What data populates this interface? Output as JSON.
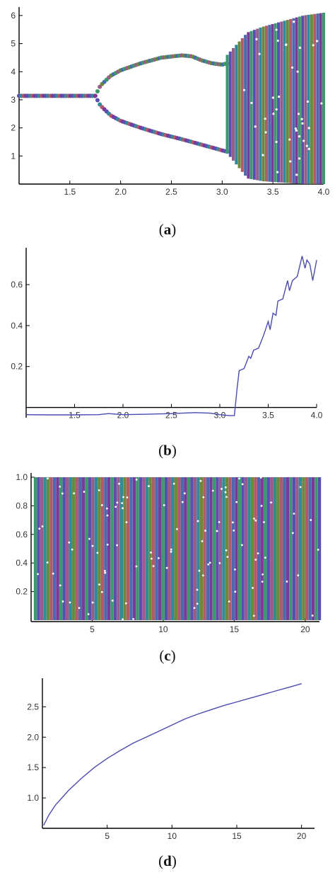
{
  "panels": [
    {
      "id": "a",
      "caption_open": "(",
      "caption_letter": "a",
      "caption_close": ")"
    },
    {
      "id": "b",
      "caption_open": "(",
      "caption_letter": "b",
      "caption_close": ")"
    },
    {
      "id": "c",
      "caption_open": "(",
      "caption_letter": "c",
      "caption_close": ")"
    },
    {
      "id": "d",
      "caption_open": "(",
      "caption_letter": "d",
      "caption_close": ")"
    }
  ],
  "colors": {
    "scatter_palette": [
      "#3a9a6a",
      "#5a4fb0",
      "#9a5a8a",
      "#2f8a9a",
      "#6a8a3a",
      "#b05a6a",
      "#4a6ab0",
      "#7a3a9a"
    ],
    "line": "#4a4ab0"
  },
  "chart_data": [
    {
      "type": "scatter",
      "xlim": [
        1.0,
        4.0
      ],
      "ylim": [
        0,
        6.3
      ],
      "xticks": [
        "1.5",
        "2.0",
        "2.5",
        "3.0",
        "3.5",
        "4.0"
      ],
      "xtick_values": [
        1.5,
        2.0,
        2.5,
        3.0,
        3.5,
        4.0
      ],
      "yticks": [
        "1",
        "2",
        "3",
        "4",
        "5",
        "6"
      ],
      "ytick_values": [
        1,
        2,
        3,
        4,
        5,
        6
      ],
      "branches": [
        {
          "x": [
            1.0,
            1.75
          ],
          "upper": [
            3.14,
            3.14
          ],
          "lower": [
            3.14,
            3.14
          ]
        },
        {
          "x": [
            1.75,
            1.8,
            1.9,
            2.0,
            2.2,
            2.4,
            2.6,
            2.7,
            2.8,
            2.9,
            3.0,
            3.05
          ],
          "upper": [
            3.14,
            3.5,
            3.85,
            4.05,
            4.3,
            4.5,
            4.58,
            4.55,
            4.4,
            4.3,
            4.25,
            4.3
          ],
          "lower": [
            3.14,
            2.8,
            2.45,
            2.25,
            2.0,
            1.78,
            1.6,
            1.5,
            1.4,
            1.3,
            1.2,
            1.15
          ]
        }
      ],
      "chaotic_band": {
        "x": [
          3.05,
          3.25,
          3.4,
          3.6,
          3.8,
          4.0
        ],
        "min": [
          1.1,
          0.2,
          0.1,
          0.05,
          0.0,
          0.0
        ],
        "max": [
          4.6,
          5.4,
          5.6,
          5.8,
          6.0,
          6.1
        ]
      }
    },
    {
      "type": "line",
      "xlim": [
        1.0,
        4.0
      ],
      "ylim": [
        -0.05,
        0.78
      ],
      "xticks": [
        "1.5",
        "2.0",
        "2.5",
        "3.0",
        "3.5",
        "4.0"
      ],
      "xtick_values": [
        1.5,
        2.0,
        2.5,
        3.0,
        3.5,
        4.0
      ],
      "yticks": [
        "0.2",
        "0.4",
        "0.6"
      ],
      "ytick_values": [
        0.2,
        0.4,
        0.6
      ],
      "x": [
        1.0,
        1.2,
        1.5,
        1.75,
        1.85,
        2.0,
        2.25,
        2.5,
        2.75,
        2.9,
        3.0,
        3.1,
        3.15,
        3.18,
        3.2,
        3.25,
        3.3,
        3.32,
        3.35,
        3.4,
        3.45,
        3.5,
        3.52,
        3.55,
        3.58,
        3.6,
        3.65,
        3.7,
        3.72,
        3.75,
        3.8,
        3.85,
        3.88,
        3.9,
        3.93,
        3.96,
        4.0
      ],
      "y": [
        -0.035,
        -0.036,
        -0.036,
        -0.035,
        -0.03,
        -0.035,
        -0.033,
        -0.03,
        -0.025,
        -0.028,
        -0.035,
        -0.04,
        -0.04,
        0.1,
        0.18,
        0.19,
        0.25,
        0.24,
        0.28,
        0.29,
        0.35,
        0.42,
        0.38,
        0.46,
        0.45,
        0.52,
        0.53,
        0.62,
        0.57,
        0.62,
        0.64,
        0.74,
        0.68,
        0.72,
        0.7,
        0.62,
        0.72
      ]
    },
    {
      "type": "scatter",
      "xlim": [
        0.7,
        21.0
      ],
      "ylim": [
        -0.01,
        1.03
      ],
      "xticks": [
        "5",
        "10",
        "15",
        "20"
      ],
      "xtick_values": [
        5,
        10,
        15,
        20
      ],
      "yticks": [
        "0.2",
        "0.4",
        "0.6",
        "0.8",
        "1.0"
      ],
      "ytick_values": [
        0.2,
        0.4,
        0.6,
        0.8,
        1.0
      ],
      "band": {
        "x": [
          1.0,
          21.0
        ],
        "min": 0.0,
        "max": 1.0
      }
    },
    {
      "type": "line",
      "xlim": [
        0.0,
        21.0
      ],
      "ylim": [
        0.5,
        2.97
      ],
      "xticks": [
        "5",
        "10",
        "15",
        "20"
      ],
      "xtick_values": [
        5,
        10,
        15,
        20
      ],
      "yticks": [
        "1.0",
        "1.5",
        "2.0",
        "2.5"
      ],
      "ytick_values": [
        1.0,
        1.5,
        2.0,
        2.5
      ],
      "x": [
        0.1,
        0.5,
        1,
        1.5,
        2,
        3,
        4,
        5,
        6,
        7,
        8,
        9,
        10,
        11,
        12,
        13,
        14,
        15,
        16,
        17,
        18,
        19,
        20
      ],
      "y": [
        0.55,
        0.72,
        0.88,
        1.0,
        1.12,
        1.32,
        1.5,
        1.65,
        1.78,
        1.9,
        2.0,
        2.1,
        2.2,
        2.3,
        2.38,
        2.45,
        2.52,
        2.58,
        2.64,
        2.7,
        2.76,
        2.82,
        2.88
      ]
    }
  ]
}
